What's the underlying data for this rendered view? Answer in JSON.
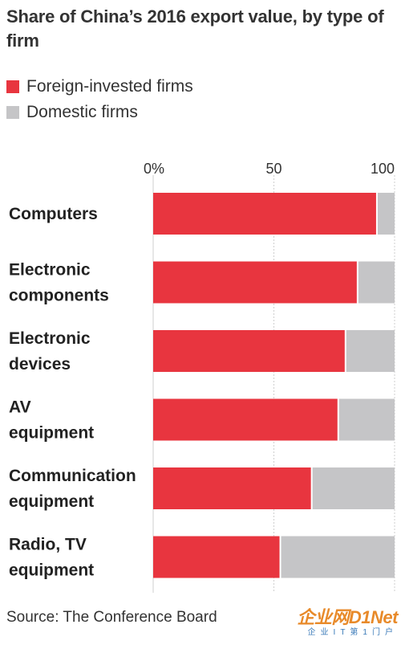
{
  "title": "Share of China’s 2016 export value, by type of firm",
  "legend": [
    {
      "name": "Foreign-invested firms",
      "color": "#e8353f"
    },
    {
      "name": "Domestic firms",
      "color": "#c5c5c7"
    }
  ],
  "source": "Source: The Conference Board",
  "watermark": {
    "main": "企业网D1Net",
    "sub": "企业IT第1门户"
  },
  "chart_data": {
    "type": "bar",
    "orientation": "horizontal",
    "stacked": true,
    "title": "Share of China’s 2016 export value, by type of firm",
    "categories": [
      [
        "Computers"
      ],
      [
        "Electronic",
        "components"
      ],
      [
        "Electronic",
        "devices"
      ],
      [
        "AV",
        "equipment"
      ],
      [
        "Communication",
        "equipment"
      ],
      [
        "Radio, TV",
        "equipment"
      ]
    ],
    "series": [
      {
        "name": "Foreign-invested firms",
        "color": "#e8353f",
        "values": [
          93,
          85,
          80,
          77,
          66,
          53
        ]
      },
      {
        "name": "Domestic firms",
        "color": "#c5c5c7",
        "values": [
          7,
          15,
          20,
          23,
          34,
          47
        ]
      }
    ],
    "xlim": [
      0,
      100
    ],
    "xticks": [
      0,
      50,
      100
    ],
    "xtick_labels": [
      "0%",
      "50",
      "100"
    ],
    "x_axis_position": "top",
    "grid": true,
    "legend_position": "top-left"
  }
}
